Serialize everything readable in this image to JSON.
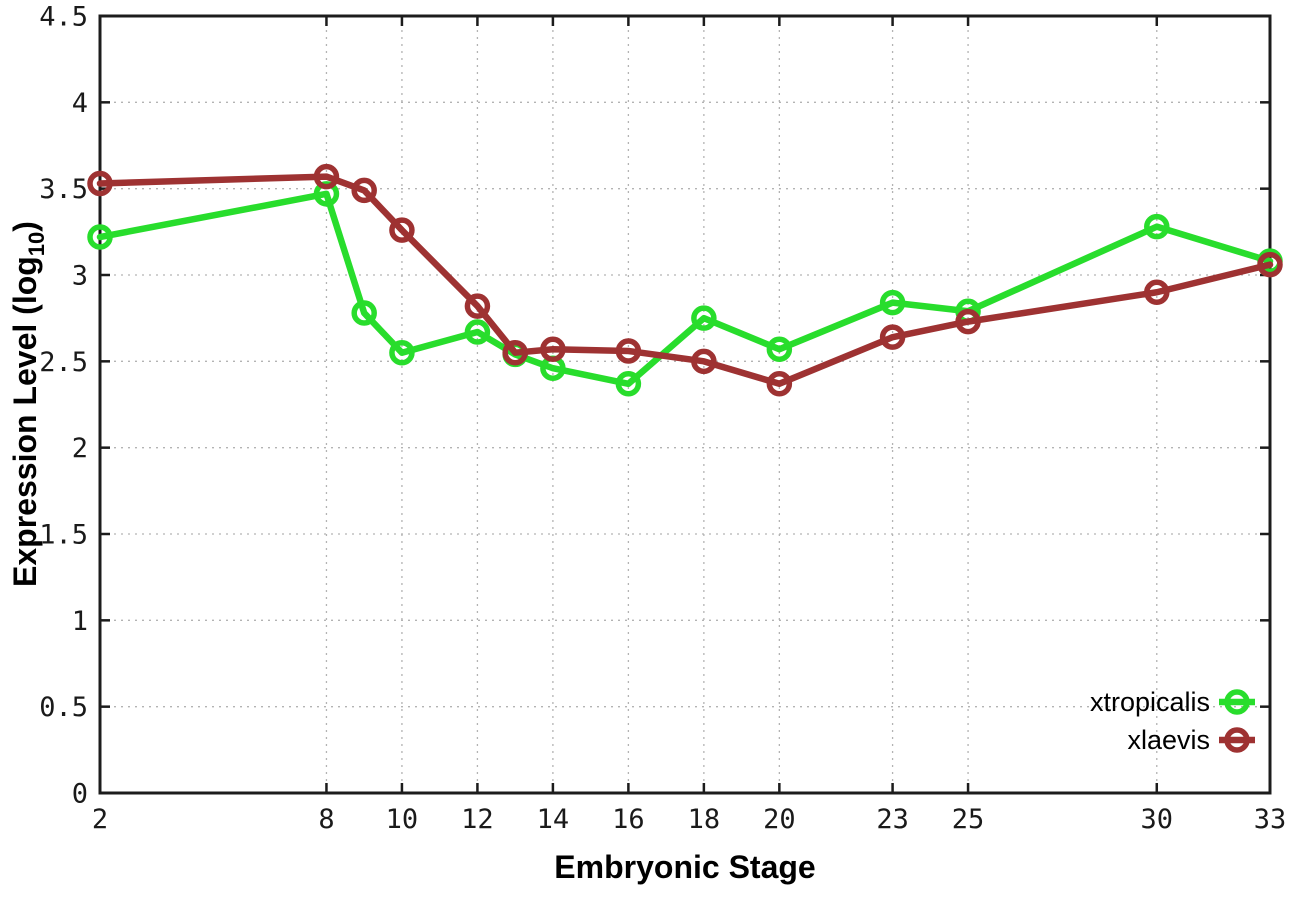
{
  "figure": {
    "background": "#ffffff",
    "border_color": "#1c1c1c",
    "grid_color": "#b3b3b3",
    "tick_label_color": "#1a1a1a"
  },
  "chart_data": {
    "type": "line",
    "title": "",
    "xlabel": "Embryonic Stage",
    "ylabel": "Expression Level (log10)",
    "ylabel_parts": {
      "pre": "Expression Level (log",
      "sub": "10",
      "post": ")"
    },
    "xlim": [
      2,
      33
    ],
    "ylim": [
      0,
      4.5
    ],
    "x_ticks": [
      2,
      8,
      10,
      12,
      14,
      16,
      18,
      20,
      23,
      25,
      30,
      33
    ],
    "y_ticks": [
      0,
      0.5,
      1,
      1.5,
      2,
      2.5,
      3,
      3.5,
      4,
      4.5
    ],
    "grid": true,
    "x": [
      2,
      8,
      9,
      10,
      12,
      13,
      14,
      16,
      18,
      20,
      23,
      25,
      30,
      33
    ],
    "series": [
      {
        "name": "xtropicalis",
        "color": "#28dd2c",
        "marker": "open-circle",
        "values": [
          3.22,
          3.47,
          2.78,
          2.55,
          2.67,
          2.54,
          2.46,
          2.37,
          2.75,
          2.57,
          2.84,
          2.79,
          3.28,
          3.08
        ]
      },
      {
        "name": "xlaevis",
        "color": "#9e3232",
        "marker": "open-circle",
        "values": [
          3.53,
          3.57,
          3.49,
          3.26,
          2.82,
          2.55,
          2.57,
          2.56,
          2.5,
          2.37,
          2.64,
          2.73,
          2.9,
          3.06
        ]
      }
    ],
    "legend": {
      "position": "inside-bottom-right",
      "entries": [
        "xtropicalis",
        "xlaevis"
      ]
    }
  }
}
